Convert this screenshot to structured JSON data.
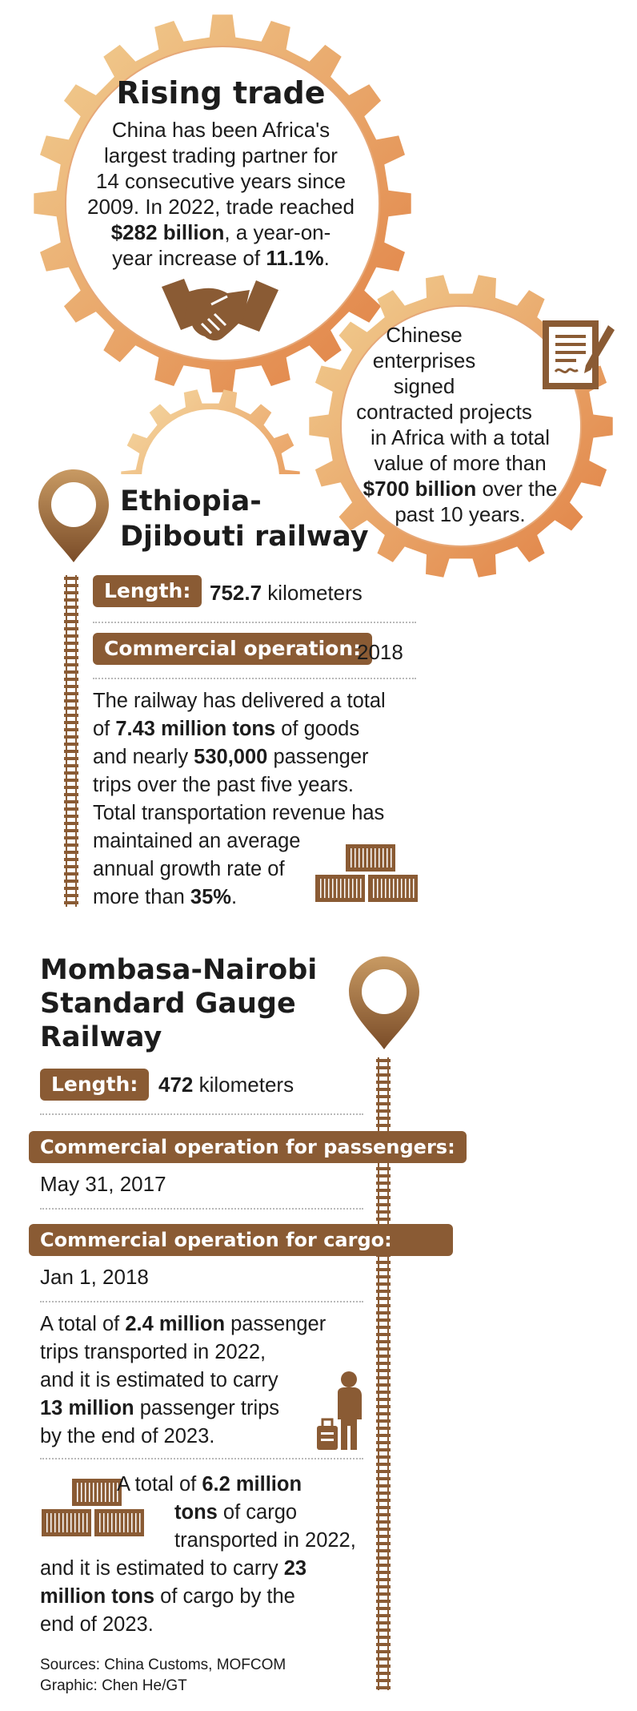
{
  "rising_trade": {
    "title": "Rising trade",
    "line1": "China has been Africa's",
    "line2": "largest trading partner for",
    "line3": "14 consecutive years since",
    "line4": "2009. In 2022, trade reached",
    "line5_bold": "$282 billion",
    "line5_rest": ", a year-on-",
    "line6_rest": "year increase of ",
    "line6_bold": "11.1%",
    "line6_end": "."
  },
  "projects": {
    "line1": "Chinese",
    "line2": "enterprises",
    "line3": "signed",
    "line4": "contracted projects",
    "line5": "in Africa with a total",
    "line6": "value of more than",
    "line7_bold": "$700 billion",
    "line7_rest": " over the",
    "line8": "past 10 years."
  },
  "ethiopia": {
    "title_line1": "Ethiopia-",
    "title_line2": "Djibouti railway",
    "length_label": "Length:",
    "length_bold": "752.7",
    "length_unit": " kilometers",
    "operation_label": "Commercial operation:",
    "operation_value": "2018",
    "p1": "The railway has delivered a total",
    "p2_a": "of ",
    "p2_bold": "7.43 million tons",
    "p2_b": " of goods",
    "p3_a": "and nearly ",
    "p3_bold": "530,000",
    "p3_b": " passenger",
    "p4": "trips over the past five years.",
    "p5": "Total transportation revenue has",
    "p6": "maintained an average",
    "p7": "annual growth rate of",
    "p8_a": "more than ",
    "p8_bold": "35%",
    "p8_b": "."
  },
  "mombasa": {
    "title_line1": "Mombasa-Nairobi",
    "title_line2": "Standard Gauge",
    "title_line3": "Railway",
    "length_label": "Length:",
    "length_bold": "472",
    "length_unit": " kilometers",
    "passenger_label": "Commercial operation for passengers:",
    "passenger_value": "May 31, 2017",
    "cargo_label": "Commercial operation for cargo:",
    "cargo_value": "Jan 1, 2018",
    "pa1_a": "A total of ",
    "pa1_bold": "2.4 million",
    "pa1_b": " passenger",
    "pa2": "trips transported in 2022,",
    "pa3": "and it is estimated to carry",
    "pa4_bold": "13 million",
    "pa4_b": " passenger trips",
    "pa5": "by the end of 2023.",
    "cg1_a": "A total of ",
    "cg1_bold": "6.2 million",
    "cg2_bold": "tons",
    "cg2_b": " of cargo",
    "cg3": "transported in 2022,",
    "cg4_a": "and it is estimated to carry ",
    "cg4_bold": "23",
    "cg5_bold": "million tons",
    "cg5_b": " of cargo by the",
    "cg6": "end of 2023."
  },
  "footer": {
    "sources": "Sources: China Customs, MOFCOM",
    "graphic": "Graphic: Chen He/GT"
  },
  "icons": [
    "gear-icon",
    "handshake-icon",
    "contract-icon",
    "location-pin-icon",
    "railway-track-icon",
    "cargo-containers-icon",
    "traveler-icon"
  ],
  "colors": {
    "brown": "#8a5b34",
    "gear_light": "#f0cb8c",
    "gear_dark": "#e2884a"
  }
}
